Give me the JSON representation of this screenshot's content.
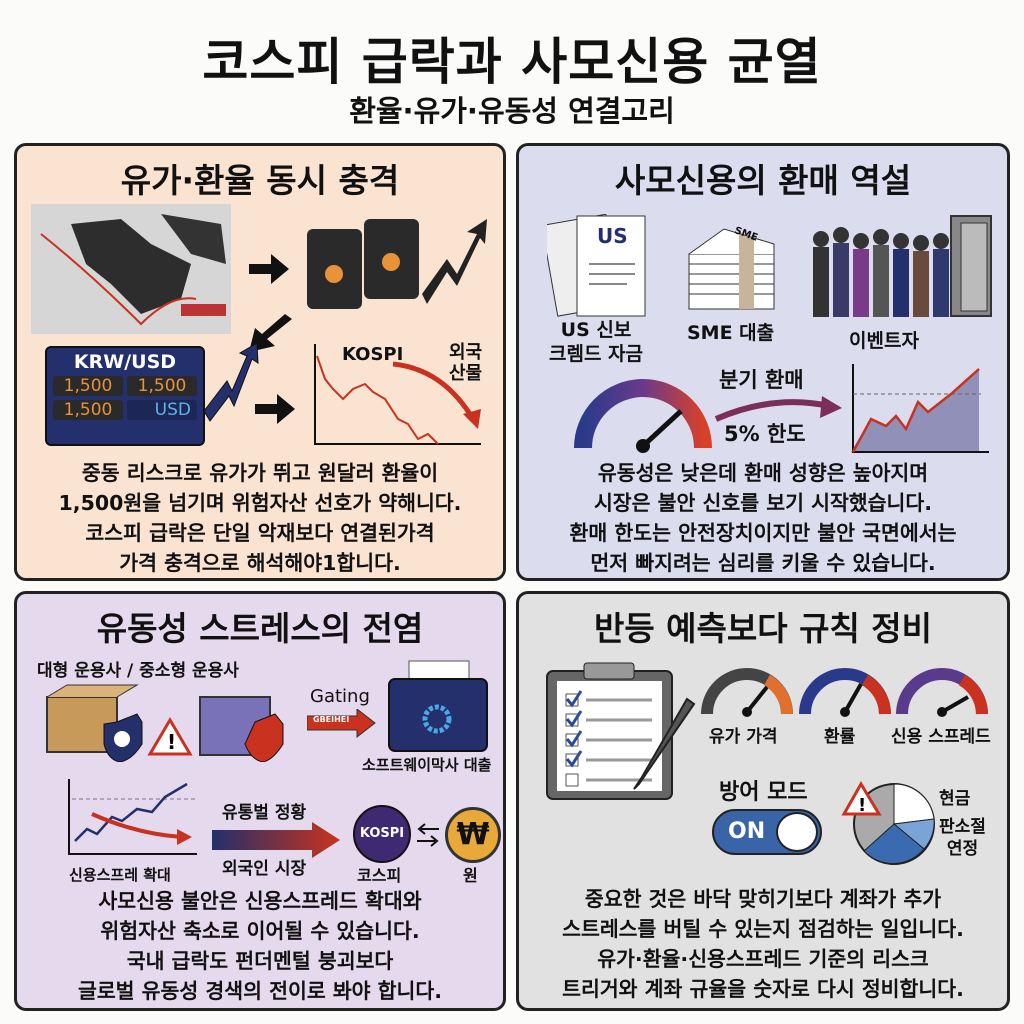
{
  "title": "코스피 급락과 사모신용 균열",
  "subtitle": "환율·유가·유동성 연결고리",
  "panels": [
    {
      "heading": "유가·환율 동시 충격",
      "fx_label": "KRW/USD",
      "fx_values": [
        "1,500",
        "1,500",
        "1,500",
        "USD"
      ],
      "chart_label": "KOSPI",
      "chart_note": [
        "외국",
        "산물"
      ],
      "body": [
        "중동 리스크로 유가가 뛰고 원달러 환율이",
        "1,500원을 넘기며 위험자산 선호가 약해니다.",
        "코스피 급락은 단일 악재보다 연결된가격",
        "가격 충격으로 해석해야1합니다."
      ]
    },
    {
      "heading": "사모신용의 환매 역설",
      "doc_label": "US",
      "items": [
        "US 신보\n크렘드 자금",
        "SME 대출",
        "이벤트자"
      ],
      "bundle_label": "SME",
      "arrow_top": "분기 환매",
      "arrow_bottom": "5% 한도",
      "body": [
        "유동성은 낮은데 환매 성향은 높아지며",
        "시장은 불안 신호를 보기 시작했습니다.",
        "환매 한도는 안전장치이지만 불안 국면에서는",
        "먼저 빠지려는 심리를 키울 수 있습니다."
      ]
    },
    {
      "heading": "유동성 스트레스의 전염",
      "managers": "대형 운용사 / 중소형 운용사",
      "gating": "Gating",
      "gating_arrow": "GBEIHEI",
      "folder_label": "소프트웨이막사 대출",
      "spread_label": "신용스프레 확대",
      "arrow_top": "유통벌 정황",
      "arrow_bottom": "외국인 시장",
      "kospi_badge": "KOSPI",
      "kospi_label": "코스피",
      "won_symbol": "₩",
      "won_label": "원",
      "body": [
        "사모신용 불안은 신용스프레드 확대와",
        "위험자산 축소로 이어될 수 있습니다.",
        "국내 급락도 펀더멘털 붕괴보다",
        "글로벌 유동성 경색의 전이로 봐야 합니다."
      ]
    },
    {
      "heading": "반등 예측보다 규칙 정비",
      "gauges": [
        "유가 가격",
        "환률",
        "신용 스프레드"
      ],
      "defense_label": "방어 모드",
      "toggle": "ON",
      "toggle_on": true,
      "pie_labels": [
        "현금",
        "판소절\n연정"
      ],
      "checklist_checked": 4,
      "checklist_total": 5,
      "body": [
        "중요한 것은 바닥 맞히기보다 계좌가 추가",
        "스트레스를 버틸 수 있는지 점검하는 일입니다.",
        "유가·환율·신용스프레드 기준의 리스크",
        "트리거와 계좌 규율을 숫자로 다시 정비합니다."
      ]
    }
  ],
  "colors": {
    "panel1": "#fbe3d2",
    "panel2": "#dcdcef",
    "panel3": "#e5d9ed",
    "panel4": "#e1e1e1",
    "navy": "#23306b",
    "red": "#c8321e",
    "orange": "#e8923a"
  }
}
